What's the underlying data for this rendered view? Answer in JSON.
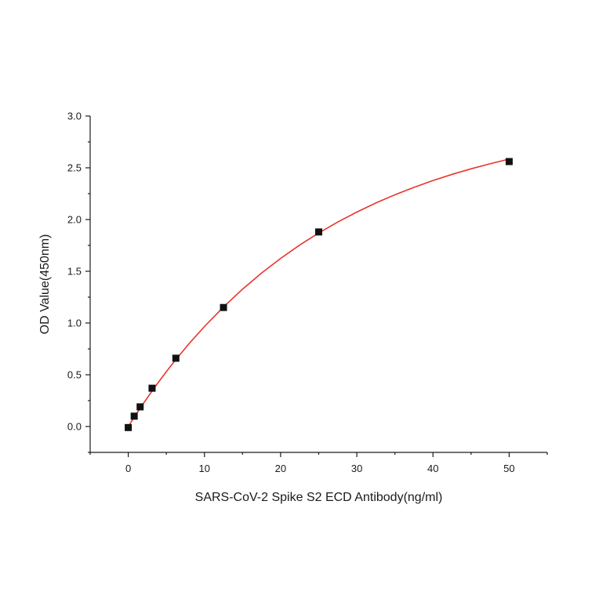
{
  "chart_data": {
    "type": "scatter",
    "title": "",
    "xlabel": "SARS-CoV-2 Spike S2 ECD Antibody(ng/ml)",
    "ylabel": "OD Value(450nm)",
    "xlim": [
      -5,
      55
    ],
    "ylim": [
      -0.25,
      3.0
    ],
    "x_ticks": [
      0,
      10,
      20,
      30,
      40,
      50
    ],
    "y_ticks": [
      0.0,
      0.5,
      1.0,
      1.5,
      2.0,
      2.5,
      3.0
    ],
    "x_tick_labels": [
      "0",
      "10",
      "20",
      "30",
      "40",
      "50"
    ],
    "y_tick_labels": [
      "0.0",
      "0.5",
      "1.0",
      "1.5",
      "2.0",
      "2.5",
      "3.0"
    ],
    "grid": false,
    "series": [
      {
        "x": [
          0,
          0.78,
          1.56,
          3.125,
          6.25,
          12.5,
          25,
          50
        ],
        "y": [
          -0.01,
          0.1,
          0.19,
          0.37,
          0.66,
          1.15,
          1.88,
          2.56
        ],
        "marker": "square",
        "color": "#111111"
      }
    ],
    "fit": {
      "type": "curve",
      "color": "#e8352b",
      "points": [
        [
          0,
          0.0
        ],
        [
          1,
          0.114
        ],
        [
          2,
          0.224
        ],
        [
          3,
          0.33
        ],
        [
          4,
          0.432
        ],
        [
          5,
          0.53
        ],
        [
          6,
          0.624
        ],
        [
          8,
          0.802
        ],
        [
          10,
          0.966
        ],
        [
          12.5,
          1.155
        ],
        [
          15,
          1.327
        ],
        [
          17.5,
          1.483
        ],
        [
          20,
          1.624
        ],
        [
          22.5,
          1.753
        ],
        [
          25,
          1.87
        ],
        [
          27.5,
          1.976
        ],
        [
          30,
          2.072
        ],
        [
          32.5,
          2.16
        ],
        [
          35,
          2.239
        ],
        [
          37.5,
          2.311
        ],
        [
          40,
          2.377
        ],
        [
          42.5,
          2.436
        ],
        [
          45,
          2.49
        ],
        [
          47.5,
          2.539
        ],
        [
          50,
          2.584
        ]
      ]
    }
  }
}
